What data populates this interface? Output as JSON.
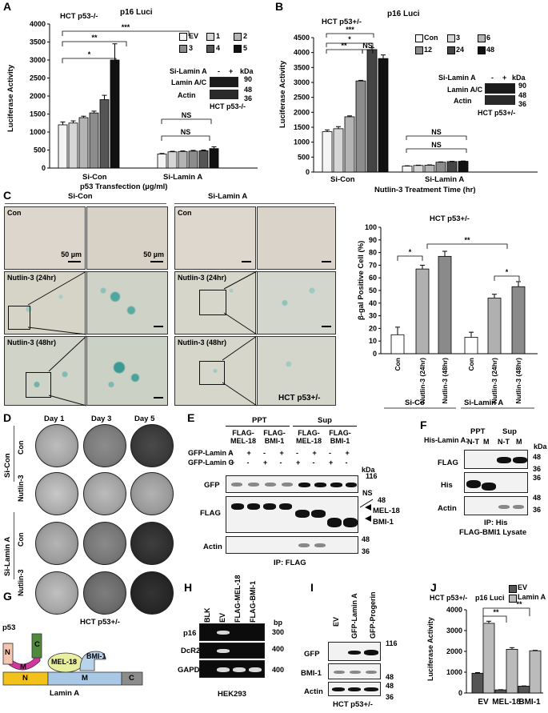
{
  "panel_labels": {
    "A": "A",
    "B": "B",
    "C": "C",
    "D": "D",
    "E": "E",
    "F": "F",
    "G": "G",
    "H": "H",
    "I": "I",
    "J": "J"
  },
  "panelA": {
    "title": "p16 Luci",
    "cell": "HCT p53-/-",
    "ylabel": "Luciferase Activity",
    "xlabel": "p53 Transfection (µg/ml)",
    "groups": [
      "Si-Con",
      "Si-Lamin A"
    ],
    "legend": [
      "EV",
      "1",
      "2",
      "3",
      "4",
      "5"
    ],
    "sig": [
      "*",
      "**",
      "***",
      "NS",
      "NS"
    ],
    "inset": {
      "row_header": "Si-Lamin A",
      "minus": "-",
      "plus": "+",
      "kda": "kDa",
      "bands": [
        "Lamin A/C",
        "Actin"
      ],
      "markers": [
        "90",
        "48",
        "36"
      ],
      "cell": "HCT p53-/-"
    }
  },
  "panelB": {
    "title": "p16 Luci",
    "cell": "HCT p53+/-",
    "ylabel": "Luciferase Activity",
    "xlabel": "Nutlin-3 Treatment Time (hr)",
    "groups": [
      "Si-Con",
      "Si-Lamin A"
    ],
    "legend": [
      "Con",
      "3",
      "6",
      "12",
      "24",
      "48"
    ],
    "sig": [
      "*",
      "**",
      "NS",
      "***",
      "NS",
      "NS"
    ],
    "inset": {
      "row_header": "Si-Lamin A",
      "minus": "-",
      "plus": "+",
      "kda": "kDa",
      "bands": [
        "Lamin A/C",
        "Actin"
      ],
      "markers": [
        "90",
        "48",
        "36"
      ],
      "cell": "HCT p53+/-"
    }
  },
  "panelC": {
    "headers": [
      "Si-Con",
      "Si-Lamin A"
    ],
    "row_labels": [
      "Con",
      "Nutlin-3 (24hr)",
      "Nutlin-3 (48hr)"
    ],
    "scale": "50 µm",
    "cell_mark": "HCT p53+/-",
    "chart_title": "HCT p53+/-",
    "ylabel": "β-gal Positive Cell (%)",
    "categories": [
      "Con",
      "Nutlin-3 (24hr)",
      "Nutlin-3 (48hr)",
      "Con",
      "Nutlin-3 (24hr)",
      "Nutlin-3 (48hr)"
    ],
    "groups": [
      "Si-Co",
      "Si-Lamin A"
    ],
    "sig": [
      "*",
      "*",
      "**"
    ]
  },
  "panelD": {
    "days": [
      "Day 1",
      "Day 3",
      "Day 5"
    ],
    "groups": [
      "Si-Con",
      "Si-Lamin A"
    ],
    "rows": [
      "Con",
      "Nutlin-3",
      "Con",
      "Nutlin-3"
    ],
    "cell": "HCT p53+/-"
  },
  "panelE": {
    "fractions": [
      "PPT",
      "Sup"
    ],
    "cols": [
      "FLAG-MEL-18",
      "FLAG-BMI-1",
      "FLAG-MEL-18",
      "FLAG-BMI-1"
    ],
    "rowheads": [
      "GFP-Lamin A",
      "GFP-Lamin C"
    ],
    "signs": [
      [
        "-",
        "+",
        "-",
        "+",
        "-",
        "+",
        "-",
        "+"
      ],
      [
        "+",
        "-",
        "+",
        "-",
        "+",
        "-",
        "+",
        "-"
      ]
    ],
    "kda": "kDa",
    "blots": [
      "GFP",
      "FLAG",
      "Actin"
    ],
    "markers": [
      "116",
      "48",
      "48",
      "36"
    ],
    "arrows": [
      "NS",
      "MEL-18",
      "BMI-1"
    ],
    "caption": "IP: FLAG"
  },
  "panelF": {
    "rowhead": "His-Lamin A:",
    "fractions": [
      "PPT",
      "Sup"
    ],
    "lanes": [
      "N-T",
      "M",
      "N-T",
      "M"
    ],
    "kda": "kDa",
    "blots": [
      "FLAG",
      "His",
      "Actin"
    ],
    "markers": [
      "48",
      "36",
      "36",
      "48",
      "36"
    ],
    "caption1": "IP: His",
    "caption2": "FLAG-BMI1 Lysate"
  },
  "panelG": {
    "p53": "p53",
    "p53_domains": [
      "N",
      "M",
      "C"
    ],
    "mel18": "MEL-18",
    "bmi1": "BMI-1",
    "lamin_domains": [
      "N",
      "M",
      "C"
    ],
    "caption": "Lamin A",
    "colors": {
      "p53_n": "#f4c6b0",
      "p53_m": "#d4359e",
      "p53_c": "#4e8a3a",
      "mel18": "#e8f0a0",
      "bmi1": "#b9d3ea",
      "lamin_n": "#f2c21b",
      "lamin_m": "#a8c8e6",
      "lamin_c": "#8c8c8c"
    }
  },
  "panelH": {
    "lanes": [
      "BLK",
      "EV",
      "FLAG-MEL-18",
      "FLAG-BMI-1"
    ],
    "bp": "bp",
    "genes": [
      "p16",
      "DcR2",
      "GAPDH"
    ],
    "markers": [
      "300",
      "400",
      "400"
    ],
    "caption": "HEK293"
  },
  "panelI": {
    "lanes": [
      "EV",
      "GFP-Lamin A",
      "GFP-Progerin"
    ],
    "blots": [
      "GFP",
      "BMI-1",
      "Actin"
    ],
    "markers": [
      "116",
      "48",
      "48",
      "36"
    ],
    "caption": "HCT p53+/-"
  },
  "panelJ": {
    "cell": "HCT p53+/-",
    "title": "p16 Luci",
    "ylabel": "Luciferase Activity",
    "legend": [
      "EV",
      "Lamin A"
    ],
    "sig": [
      "**",
      "**"
    ]
  },
  "chart_data": [
    {
      "panel": "A",
      "type": "bar",
      "title": "p16 Luci",
      "xlabel": "p53 Transfection (µg/ml)",
      "ylabel": "Luciferase Activity",
      "ylim": [
        0,
        4000
      ],
      "yticks": [
        0,
        500,
        1000,
        1500,
        2000,
        2500,
        3000,
        3500,
        4000
      ],
      "groups": [
        "Si-Con",
        "Si-Lamin A"
      ],
      "series": [
        {
          "name": "EV",
          "values": [
            1200,
            390
          ],
          "errors": [
            80,
            15
          ]
        },
        {
          "name": "1",
          "values": [
            1250,
            450
          ],
          "errors": [
            60,
            15
          ]
        },
        {
          "name": "2",
          "values": [
            1400,
            460
          ],
          "errors": [
            40,
            15
          ]
        },
        {
          "name": "3",
          "values": [
            1530,
            470
          ],
          "errors": [
            50,
            20
          ]
        },
        {
          "name": "4",
          "values": [
            1900,
            480
          ],
          "errors": [
            120,
            20
          ]
        },
        {
          "name": "5",
          "values": [
            3000,
            540
          ],
          "errors": [
            450,
            50
          ]
        }
      ],
      "colors": [
        "#f4f4f4",
        "#d6d6d6",
        "#b4b4b4",
        "#8c8c8c",
        "#555555",
        "#111111"
      ]
    },
    {
      "panel": "B",
      "type": "bar",
      "title": "p16 Luci",
      "xlabel": "Nutlin-3 Treatment Time (hr)",
      "ylabel": "Luciferase Activity",
      "ylim": [
        0,
        4500
      ],
      "yticks": [
        0,
        500,
        1000,
        1500,
        2000,
        2500,
        3000,
        3500,
        4000,
        4500
      ],
      "groups": [
        "Si-Con",
        "Si-Lamin A"
      ],
      "series": [
        {
          "name": "Con",
          "values": [
            1350,
            200
          ],
          "errors": [
            60,
            10
          ]
        },
        {
          "name": "3",
          "values": [
            1450,
            220
          ],
          "errors": [
            70,
            10
          ]
        },
        {
          "name": "6",
          "values": [
            1850,
            230
          ],
          "errors": [
            30,
            10
          ]
        },
        {
          "name": "12",
          "values": [
            3050,
            330
          ],
          "errors": [
            20,
            10
          ]
        },
        {
          "name": "24",
          "values": [
            4100,
            350
          ],
          "errors": [
            60,
            10
          ]
        },
        {
          "name": "48",
          "values": [
            3800,
            360
          ],
          "errors": [
            120,
            10
          ]
        }
      ],
      "colors": [
        "#f4f4f4",
        "#d6d6d6",
        "#b4b4b4",
        "#8c8c8c",
        "#444444",
        "#111111"
      ]
    },
    {
      "panel": "C",
      "type": "bar",
      "title": "HCT p53+/-",
      "ylabel": "β-gal Positive Cell (%)",
      "ylim": [
        0,
        100
      ],
      "yticks": [
        0,
        10,
        20,
        30,
        40,
        50,
        60,
        70,
        80,
        90,
        100
      ],
      "categories": [
        "Con",
        "Nutlin-3 (24hr)",
        "Nutlin-3 (48hr)",
        "Con",
        "Nutlin-3 (24hr)",
        "Nutlin-3 (48hr)"
      ],
      "groups": [
        "Si-Co",
        "Si-Lamin A"
      ],
      "values": [
        15,
        67,
        77,
        13,
        44,
        53
      ],
      "errors": [
        6,
        3,
        4,
        4,
        3,
        4
      ],
      "colors": [
        "#ffffff",
        "#b0b0b0",
        "#8a8a8a",
        "#ffffff",
        "#b0b0b0",
        "#8a8a8a"
      ]
    },
    {
      "panel": "J",
      "type": "bar",
      "title": "p16 Luci",
      "ylabel": "Luciferase Activity",
      "ylim": [
        0,
        4000
      ],
      "yticks": [
        0,
        1000,
        2000,
        3000,
        4000
      ],
      "categories": [
        "EV",
        "MEL-18",
        "BMI-1"
      ],
      "series": [
        {
          "name": "EV",
          "values": [
            950,
            150,
            330
          ],
          "errors": [
            30,
            10,
            10
          ]
        },
        {
          "name": "Lamin A",
          "values": [
            3350,
            2100,
            2030
          ],
          "errors": [
            100,
            80,
            20
          ]
        }
      ],
      "colors": [
        "#555555",
        "#bbbbbb"
      ]
    }
  ]
}
